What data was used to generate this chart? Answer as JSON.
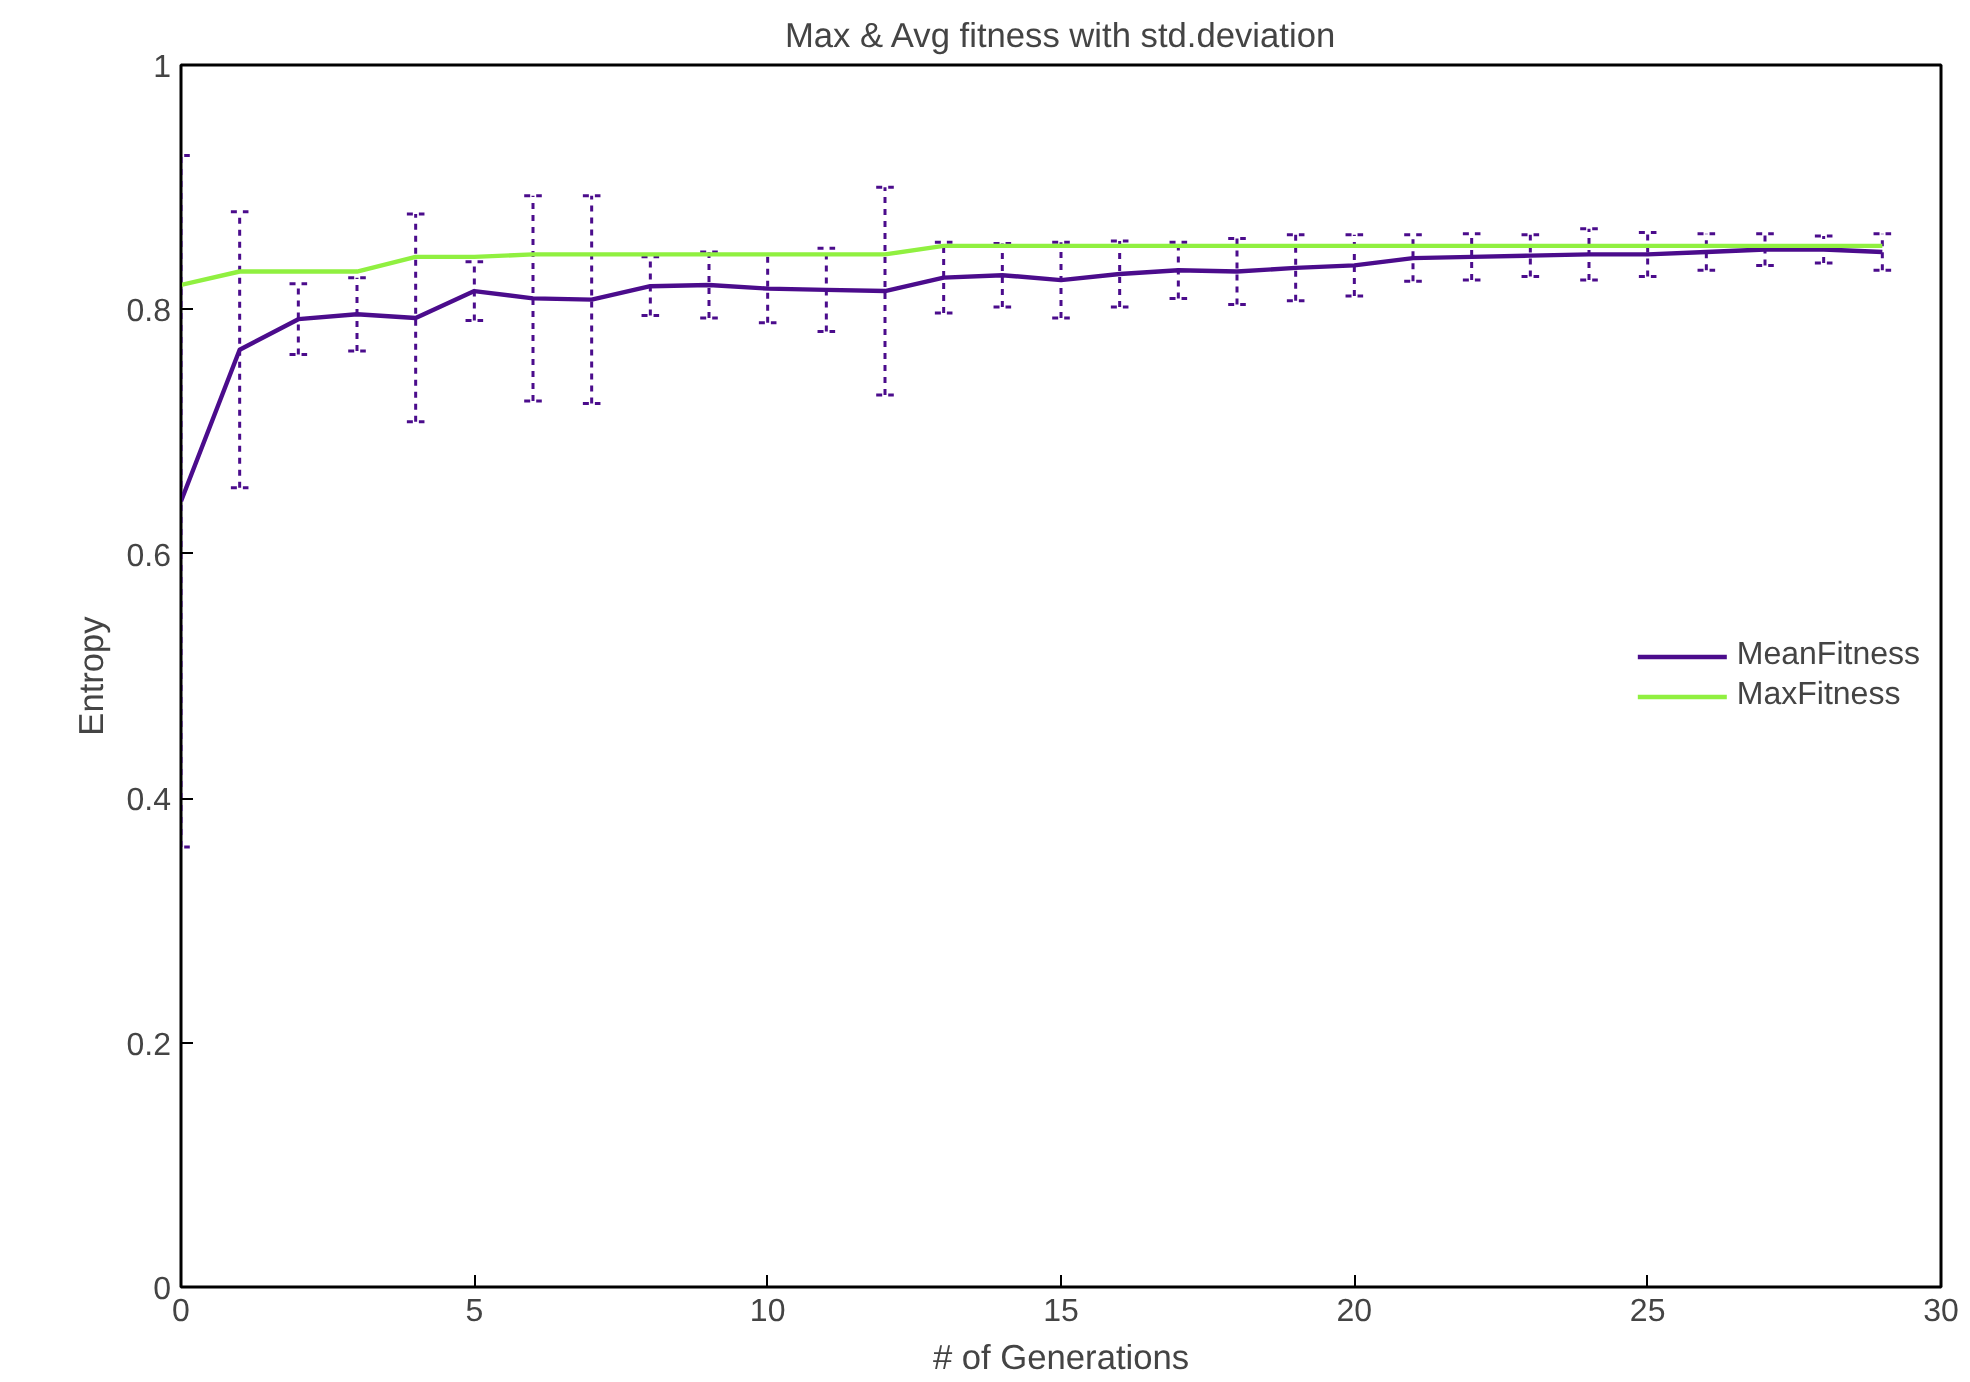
{
  "chart_data": {
    "type": "line",
    "title": "Max & Avg fitness with std.deviation",
    "xlabel": "# of Generations",
    "ylabel": "Entropy",
    "x": [
      0,
      1,
      2,
      3,
      4,
      5,
      6,
      7,
      8,
      9,
      10,
      11,
      12,
      13,
      14,
      15,
      16,
      17,
      18,
      19,
      20,
      21,
      22,
      23,
      24,
      25,
      26,
      27,
      28,
      29
    ],
    "series": [
      {
        "name": "MeanFitness",
        "color": "#4b0c8c",
        "values": [
          0.643,
          0.767,
          0.792,
          0.796,
          0.793,
          0.815,
          0.809,
          0.808,
          0.819,
          0.82,
          0.817,
          0.816,
          0.815,
          0.826,
          0.828,
          0.824,
          0.829,
          0.832,
          0.831,
          0.834,
          0.836,
          0.842,
          0.843,
          0.844,
          0.845,
          0.845,
          0.847,
          0.849,
          0.849,
          0.847
        ],
        "errors": [
          0.283,
          0.113,
          0.029,
          0.03,
          0.085,
          0.024,
          0.084,
          0.085,
          0.024,
          0.027,
          0.028,
          0.034,
          0.085,
          0.029,
          0.026,
          0.031,
          0.027,
          0.023,
          0.027,
          0.027,
          0.025,
          0.019,
          0.019,
          0.017,
          0.021,
          0.018,
          0.015,
          0.013,
          0.011,
          0.015
        ]
      },
      {
        "name": "MaxFitness",
        "color": "#90f040",
        "values": [
          0.82,
          0.831,
          0.831,
          0.831,
          0.843,
          0.843,
          0.845,
          0.845,
          0.845,
          0.845,
          0.845,
          0.845,
          0.845,
          0.852,
          0.852,
          0.852,
          0.852,
          0.852,
          0.852,
          0.852,
          0.852,
          0.852,
          0.852,
          0.852,
          0.852,
          0.852,
          0.852,
          0.852,
          0.852,
          0.852
        ]
      }
    ],
    "xlim": [
      0,
      30
    ],
    "xticks": [
      0,
      5,
      10,
      15,
      20,
      25,
      30
    ],
    "ylim": [
      0,
      1
    ],
    "yticks": [
      0,
      {
        "value": 0.2,
        "label": "0.2"
      },
      {
        "value": 0.4,
        "label": "0.4"
      },
      {
        "value": 0.6,
        "label": "0.6"
      },
      {
        "value": 0.8,
        "label": "0.8"
      },
      1
    ],
    "grid": false,
    "legend": "right",
    "line_style": "solid",
    "marker": "none"
  }
}
